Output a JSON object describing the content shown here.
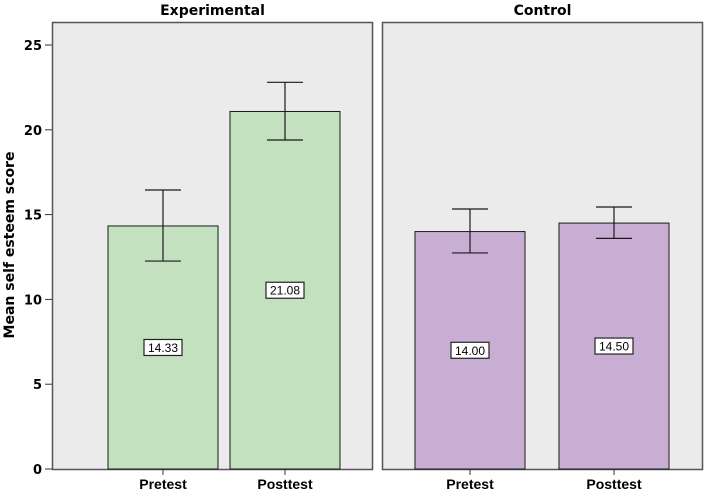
{
  "chart_data": {
    "type": "bar",
    "title": "",
    "xlabel": "",
    "ylabel": "Mean self esteem score",
    "ylim": [
      0,
      26.3
    ],
    "yticks": [
      0,
      5,
      10,
      15,
      20,
      25
    ],
    "grid": false,
    "legend": "none",
    "categories": [
      "Pretest",
      "Posttest"
    ],
    "panels": [
      {
        "name": "Experimental",
        "color": "#c3e1bf",
        "bars": [
          {
            "category": "Pretest",
            "value": 14.33,
            "label": "14.33",
            "error_low": 12.26,
            "error_high": 16.45
          },
          {
            "category": "Posttest",
            "value": 21.08,
            "label": "21.08",
            "error_low": 19.4,
            "error_high": 22.8
          }
        ]
      },
      {
        "name": "Control",
        "color": "#c9aed3",
        "bars": [
          {
            "category": "Pretest",
            "value": 14.0,
            "label": "14.00",
            "error_low": 12.74,
            "error_high": 15.33
          },
          {
            "category": "Posttest",
            "value": 14.5,
            "label": "14.50",
            "error_low": 13.6,
            "error_high": 15.45
          }
        ]
      }
    ],
    "colors": {
      "panel_background": "#ebebeb",
      "panel_border": "#555555",
      "bar_border": "#1a1a1a",
      "error_bar": "#1a1a1a"
    }
  }
}
